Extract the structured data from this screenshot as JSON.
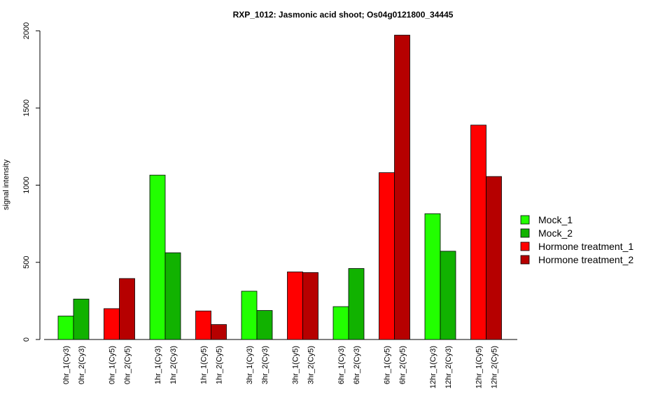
{
  "chart_data": {
    "type": "bar",
    "title": "RXP_1012: Jasmonic acid shoot; Os04g0121800_34445",
    "xlabel": "",
    "ylabel": "signal intensity",
    "ylim": [
      0,
      2000
    ],
    "yticks": [
      0,
      500,
      1000,
      1500,
      2000
    ],
    "grid": false,
    "legend_position": "right",
    "groups": [
      {
        "bars": [
          {
            "label": "0hr_1(Cy3)",
            "value": 152,
            "series": "Mock_1"
          },
          {
            "label": "0hr_2(Cy3)",
            "value": 262,
            "series": "Mock_2"
          }
        ]
      },
      {
        "bars": [
          {
            "label": "0hr_1(Cy5)",
            "value": 200,
            "series": "Hormone treatment_1"
          },
          {
            "label": "0hr_2(Cy5)",
            "value": 395,
            "series": "Hormone treatment_2"
          }
        ]
      },
      {
        "bars": [
          {
            "label": "1hr_1(Cy3)",
            "value": 1065,
            "series": "Mock_1"
          },
          {
            "label": "1hr_2(Cy3)",
            "value": 562,
            "series": "Mock_2"
          }
        ]
      },
      {
        "bars": [
          {
            "label": "1hr_1(Cy5)",
            "value": 185,
            "series": "Hormone treatment_1"
          },
          {
            "label": "1hr_2(Cy5)",
            "value": 97,
            "series": "Hormone treatment_2"
          }
        ]
      },
      {
        "bars": [
          {
            "label": "3hr_1(Cy3)",
            "value": 313,
            "series": "Mock_1"
          },
          {
            "label": "3hr_2(Cy3)",
            "value": 188,
            "series": "Mock_2"
          }
        ]
      },
      {
        "bars": [
          {
            "label": "3hr_1(Cy5)",
            "value": 438,
            "series": "Hormone treatment_1"
          },
          {
            "label": "3hr_2(Cy5)",
            "value": 434,
            "series": "Hormone treatment_2"
          }
        ]
      },
      {
        "bars": [
          {
            "label": "6hr_1(Cy3)",
            "value": 213,
            "series": "Mock_1"
          },
          {
            "label": "6hr_2(Cy3)",
            "value": 460,
            "series": "Mock_2"
          }
        ]
      },
      {
        "bars": [
          {
            "label": "6hr_1(Cy5)",
            "value": 1081,
            "series": "Hormone treatment_1"
          },
          {
            "label": "6hr_2(Cy5)",
            "value": 1972,
            "series": "Hormone treatment_2"
          }
        ]
      },
      {
        "bars": [
          {
            "label": "12hr_1(Cy3)",
            "value": 815,
            "series": "Mock_1"
          },
          {
            "label": "12hr_2(Cy3)",
            "value": 572,
            "series": "Mock_2"
          }
        ]
      },
      {
        "bars": [
          {
            "label": "12hr_1(Cy5)",
            "value": 1389,
            "series": "Hormone treatment_1"
          },
          {
            "label": "12hr_2(Cy5)",
            "value": 1056,
            "series": "Hormone treatment_2"
          }
        ]
      }
    ],
    "legend": [
      {
        "name": "Mock_1",
        "color": "#22ff00"
      },
      {
        "name": "Mock_2",
        "color": "#11b200"
      },
      {
        "name": "Hormone treatment_1",
        "color": "#ff0000"
      },
      {
        "name": "Hormone treatment_2",
        "color": "#b60000"
      }
    ]
  }
}
